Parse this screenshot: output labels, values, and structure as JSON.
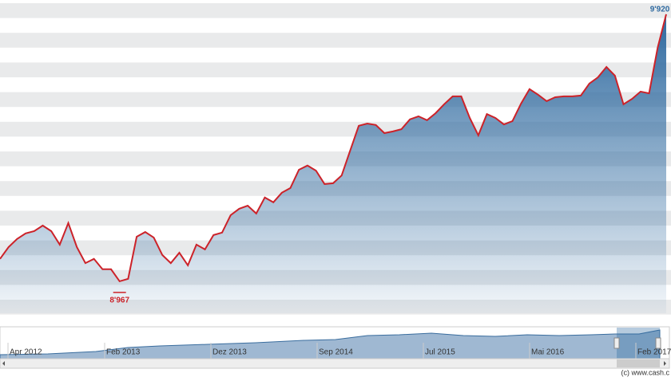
{
  "chart_data": {
    "type": "area",
    "values": [
      9047,
      9089,
      9118,
      9138,
      9146,
      9166,
      9146,
      9098,
      9175,
      9089,
      9032,
      9047,
      9010,
      9010,
      8967,
      8976,
      9126,
      9143,
      9123,
      9061,
      9032,
      9069,
      9024,
      9098,
      9081,
      9132,
      9141,
      9203,
      9226,
      9237,
      9209,
      9266,
      9249,
      9283,
      9300,
      9365,
      9380,
      9362,
      9314,
      9317,
      9345,
      9434,
      9522,
      9530,
      9525,
      9496,
      9502,
      9510,
      9545,
      9556,
      9542,
      9567,
      9599,
      9627,
      9627,
      9550,
      9488,
      9564,
      9550,
      9527,
      9539,
      9601,
      9653,
      9633,
      9610,
      9624,
      9627,
      9627,
      9630,
      9673,
      9695,
      9732,
      9701,
      9599,
      9618,
      9644,
      9638,
      9801,
      9920
    ],
    "value_labels": [
      null,
      null,
      null,
      null,
      null,
      null,
      null,
      null,
      null,
      null,
      null,
      null,
      null,
      null,
      "8'967",
      null,
      null,
      null,
      null,
      null,
      null,
      null,
      null,
      null,
      null,
      null,
      null,
      null,
      null,
      null,
      null,
      null,
      null,
      null,
      null,
      null,
      null,
      null,
      null,
      null,
      null,
      null,
      null,
      null,
      null,
      null,
      null,
      null,
      null,
      null,
      null,
      null,
      null,
      null,
      null,
      null,
      null,
      null,
      null,
      null,
      null,
      null,
      null,
      null,
      null,
      null,
      null,
      null,
      null,
      null,
      null,
      null,
      null,
      null,
      null,
      null,
      null,
      null,
      "9'920"
    ],
    "ylim": [
      8853,
      9971
    ],
    "line_color": "#cc2229",
    "area_color": "#2f6aa0",
    "navigator_labels": [
      "Apr 2012",
      "Feb 2013",
      "Dez 2013",
      "Sep 2014",
      "Jul 2015",
      "Mai 2016",
      "Feb 2017"
    ],
    "credit": "(c) www.cash.c"
  }
}
